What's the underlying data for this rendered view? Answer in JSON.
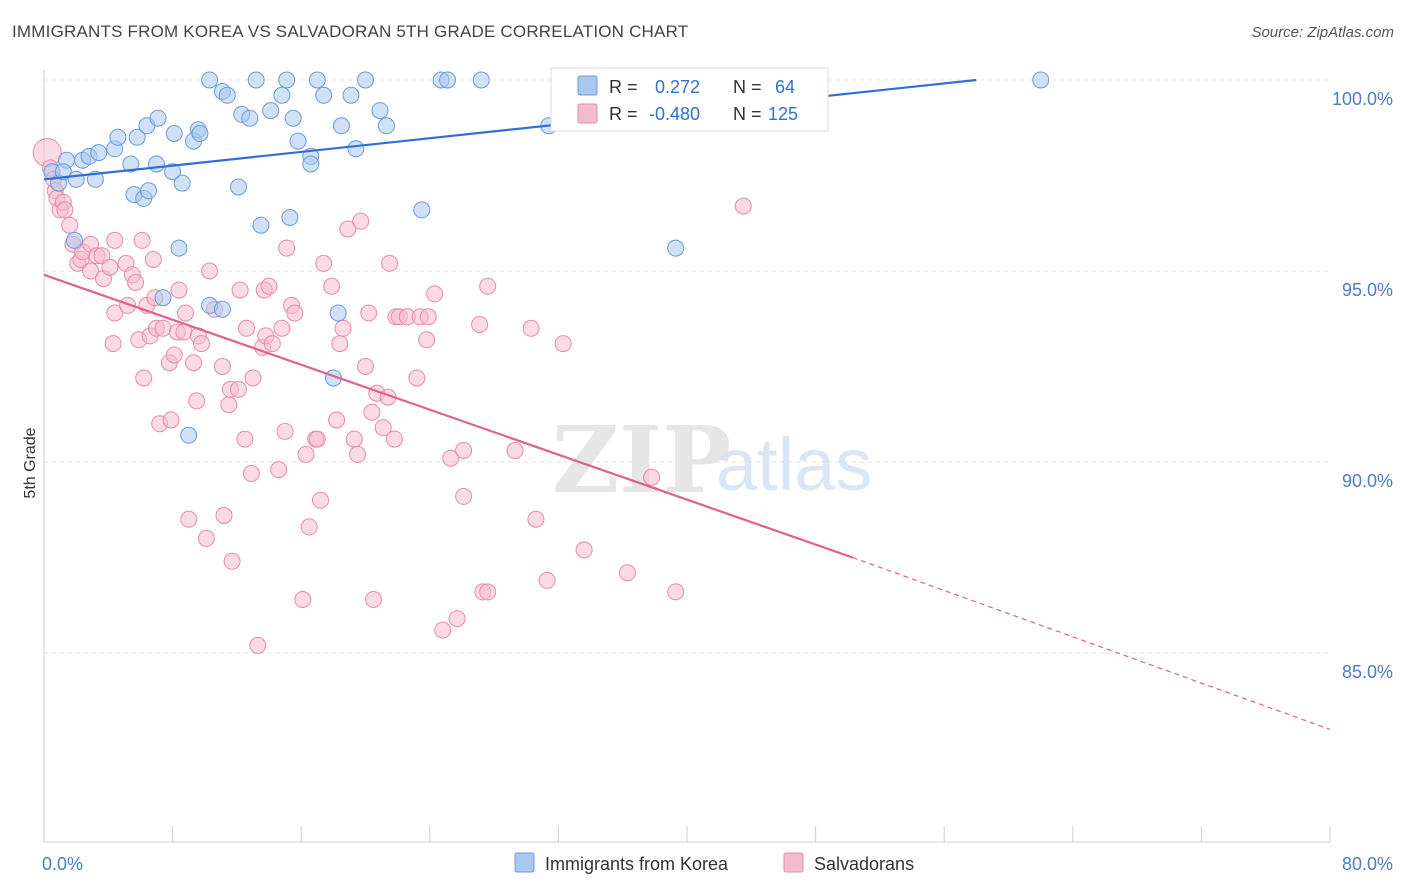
{
  "header": {
    "title": "IMMIGRANTS FROM KOREA VS SALVADORAN 5TH GRADE CORRELATION CHART",
    "source": "Source: ZipAtlas.com"
  },
  "watermark": {
    "zip": "ZIP",
    "atlas": "atlas"
  },
  "colors": {
    "blue": "#a9c8ef",
    "blue_stroke": "#6a9bdc",
    "blue_line": "#2f6fd6",
    "pink": "#f5bcd0",
    "pink_stroke": "#e88aab",
    "pink_line": "#e0608e",
    "axis_label": "#4a7cc9",
    "grid": "#e3e3e3"
  },
  "legend_top": {
    "rows": [
      {
        "r_label": "R =",
        "r_value": "0.272",
        "n_label": "N =",
        "n_value": "64",
        "color": "#a9c8ef"
      },
      {
        "r_label": "R =",
        "r_value": "-0.480",
        "n_label": "N =",
        "n_value": "125",
        "color": "#f5bcd0"
      }
    ]
  },
  "legend_bottom": {
    "items": [
      {
        "label": "Immigrants from Korea",
        "color": "#a9c8ef"
      },
      {
        "label": "Salvadorans",
        "color": "#f5bcd0"
      }
    ]
  },
  "chart_data": {
    "type": "scatter",
    "title": "IMMIGRANTS FROM KOREA VS SALVADORAN 5TH GRADE CORRELATION CHART",
    "ylabel": "5th Grade",
    "xlabel": "",
    "xlim": [
      0,
      80
    ],
    "ylim": [
      80.0,
      100.4
    ],
    "x_tick_labels": {
      "0": "0.0%",
      "80": "80.0%"
    },
    "y_ticks": [
      {
        "value": 100,
        "label": "100.0%"
      },
      {
        "value": 95,
        "label": "95.0%"
      },
      {
        "value": 90,
        "label": "90.0%"
      },
      {
        "value": 85,
        "label": "85.0%"
      }
    ],
    "grid": true,
    "legend_position": "top-center",
    "series": [
      {
        "name": "Immigrants from Korea",
        "r": 0.272,
        "n": 64,
        "trend": {
          "x": [
            0,
            58
          ],
          "y": [
            97.4,
            100.0
          ],
          "dashed_to": null
        },
        "points": [
          [
            0.5,
            97.6
          ],
          [
            0.9,
            97.3
          ],
          [
            1.4,
            97.9
          ],
          [
            1.2,
            97.6
          ],
          [
            2.4,
            97.9
          ],
          [
            2.0,
            97.4
          ],
          [
            3.2,
            97.4
          ],
          [
            2.8,
            98.0
          ],
          [
            3.4,
            98.1
          ],
          [
            4.4,
            98.2
          ],
          [
            4.6,
            98.5
          ],
          [
            5.4,
            97.8
          ],
          [
            5.6,
            97.0
          ],
          [
            5.8,
            98.5
          ],
          [
            6.2,
            96.9
          ],
          [
            6.5,
            97.1
          ],
          [
            6.4,
            98.8
          ],
          [
            7.0,
            97.8
          ],
          [
            7.1,
            99.0
          ],
          [
            8.0,
            97.6
          ],
          [
            8.1,
            98.6
          ],
          [
            8.6,
            97.3
          ],
          [
            9.3,
            98.4
          ],
          [
            9.6,
            98.7
          ],
          [
            9.7,
            98.6
          ],
          [
            10.3,
            100.0
          ],
          [
            11.1,
            99.7
          ],
          [
            11.4,
            99.6
          ],
          [
            12.3,
            99.1
          ],
          [
            12.1,
            97.2
          ],
          [
            12.8,
            99.0
          ],
          [
            13.2,
            100.0
          ],
          [
            13.5,
            96.2
          ],
          [
            14.1,
            99.2
          ],
          [
            15.1,
            100.0
          ],
          [
            15.3,
            96.4
          ],
          [
            15.5,
            99.0
          ],
          [
            15.8,
            98.4
          ],
          [
            16.6,
            98.0
          ],
          [
            17.0,
            100.0
          ],
          [
            16.6,
            97.8
          ],
          [
            18.5,
            98.8
          ],
          [
            19.1,
            99.6
          ],
          [
            19.4,
            98.2
          ],
          [
            20.0,
            100.0
          ],
          [
            20.9,
            99.2
          ],
          [
            24.7,
            100.0
          ],
          [
            25.1,
            100.0
          ],
          [
            27.2,
            100.0
          ],
          [
            31.4,
            98.8
          ],
          [
            39.3,
            95.6
          ],
          [
            62.0,
            100.0
          ],
          [
            1.9,
            95.8
          ],
          [
            7.4,
            94.3
          ],
          [
            8.4,
            95.6
          ],
          [
            10.3,
            94.1
          ],
          [
            18.3,
            93.9
          ],
          [
            18.0,
            92.2
          ],
          [
            9.0,
            90.7
          ],
          [
            11.1,
            94.0
          ],
          [
            21.3,
            98.8
          ],
          [
            14.8,
            99.6
          ],
          [
            23.5,
            96.6
          ],
          [
            17.4,
            99.6
          ]
        ]
      },
      {
        "name": "Salvadorans",
        "r": -0.48,
        "n": 125,
        "trend": {
          "x": [
            0,
            50.3
          ],
          "y": [
            94.9,
            87.5
          ],
          "dashed_to": {
            "x": 80,
            "y": 83.0
          }
        },
        "points": [
          [
            0.2,
            98.1
          ],
          [
            0.4,
            97.7
          ],
          [
            0.6,
            97.4
          ],
          [
            0.7,
            97.1
          ],
          [
            0.8,
            96.9
          ],
          [
            1.0,
            96.6
          ],
          [
            1.2,
            96.8
          ],
          [
            1.3,
            96.6
          ],
          [
            1.6,
            96.2
          ],
          [
            1.8,
            95.7
          ],
          [
            2.1,
            95.2
          ],
          [
            2.3,
            95.3
          ],
          [
            2.4,
            95.5
          ],
          [
            2.9,
            95.0
          ],
          [
            2.9,
            95.7
          ],
          [
            3.3,
            95.4
          ],
          [
            3.6,
            95.4
          ],
          [
            3.7,
            94.8
          ],
          [
            4.1,
            95.1
          ],
          [
            4.3,
            93.1
          ],
          [
            4.4,
            95.8
          ],
          [
            4.4,
            93.9
          ],
          [
            5.1,
            95.2
          ],
          [
            5.2,
            94.1
          ],
          [
            5.5,
            94.9
          ],
          [
            5.7,
            94.7
          ],
          [
            5.9,
            93.2
          ],
          [
            6.1,
            95.8
          ],
          [
            6.2,
            92.2
          ],
          [
            6.4,
            94.1
          ],
          [
            6.6,
            93.3
          ],
          [
            6.9,
            94.3
          ],
          [
            7.0,
            93.5
          ],
          [
            7.2,
            91.0
          ],
          [
            7.4,
            93.5
          ],
          [
            7.8,
            92.6
          ],
          [
            7.9,
            91.1
          ],
          [
            8.1,
            92.8
          ],
          [
            8.3,
            93.4
          ],
          [
            8.4,
            94.5
          ],
          [
            8.7,
            93.4
          ],
          [
            8.8,
            93.9
          ],
          [
            9.0,
            88.5
          ],
          [
            9.3,
            92.6
          ],
          [
            9.5,
            91.6
          ],
          [
            9.6,
            93.3
          ],
          [
            9.8,
            93.1
          ],
          [
            10.1,
            88.0
          ],
          [
            10.3,
            95.0
          ],
          [
            10.6,
            94.0
          ],
          [
            11.1,
            92.5
          ],
          [
            11.2,
            88.6
          ],
          [
            11.5,
            91.5
          ],
          [
            11.6,
            91.9
          ],
          [
            11.7,
            87.4
          ],
          [
            12.1,
            91.9
          ],
          [
            12.2,
            94.5
          ],
          [
            12.5,
            90.6
          ],
          [
            12.6,
            93.5
          ],
          [
            12.9,
            89.7
          ],
          [
            13.0,
            92.2
          ],
          [
            13.3,
            85.2
          ],
          [
            13.6,
            93.0
          ],
          [
            13.7,
            94.5
          ],
          [
            13.8,
            93.3
          ],
          [
            14.0,
            94.6
          ],
          [
            14.2,
            93.1
          ],
          [
            14.6,
            89.8
          ],
          [
            14.8,
            93.5
          ],
          [
            15.0,
            90.8
          ],
          [
            15.1,
            95.6
          ],
          [
            15.4,
            94.1
          ],
          [
            15.6,
            93.9
          ],
          [
            16.1,
            86.4
          ],
          [
            16.3,
            90.2
          ],
          [
            16.5,
            88.3
          ],
          [
            16.9,
            90.6
          ],
          [
            17.0,
            90.6
          ],
          [
            17.2,
            89.0
          ],
          [
            17.4,
            95.2
          ],
          [
            17.9,
            94.6
          ],
          [
            18.2,
            91.1
          ],
          [
            18.4,
            93.1
          ],
          [
            18.6,
            93.5
          ],
          [
            18.9,
            96.1
          ],
          [
            19.3,
            90.6
          ],
          [
            19.5,
            90.2
          ],
          [
            19.7,
            96.3
          ],
          [
            20.0,
            92.5
          ],
          [
            20.2,
            93.9
          ],
          [
            20.4,
            91.3
          ],
          [
            20.7,
            91.8
          ],
          [
            21.1,
            90.9
          ],
          [
            21.4,
            91.7
          ],
          [
            21.5,
            95.2
          ],
          [
            21.8,
            90.6
          ],
          [
            21.9,
            93.8
          ],
          [
            22.1,
            93.8
          ],
          [
            22.6,
            93.8
          ],
          [
            23.2,
            92.2
          ],
          [
            23.4,
            93.8
          ],
          [
            23.8,
            93.2
          ],
          [
            23.9,
            93.8
          ],
          [
            24.3,
            94.4
          ],
          [
            24.8,
            85.6
          ],
          [
            25.3,
            90.1
          ],
          [
            25.7,
            85.9
          ],
          [
            26.1,
            89.1
          ],
          [
            26.1,
            90.3
          ],
          [
            27.1,
            93.6
          ],
          [
            27.3,
            86.6
          ],
          [
            27.6,
            94.6
          ],
          [
            27.6,
            86.6
          ],
          [
            29.3,
            90.3
          ],
          [
            30.3,
            93.5
          ],
          [
            30.6,
            88.5
          ],
          [
            31.3,
            86.9
          ],
          [
            32.3,
            93.1
          ],
          [
            33.6,
            87.7
          ],
          [
            36.3,
            87.1
          ],
          [
            37.8,
            89.6
          ],
          [
            39.3,
            86.6
          ],
          [
            43.5,
            96.7
          ],
          [
            6.8,
            95.3
          ],
          [
            20.5,
            86.4
          ]
        ]
      }
    ]
  }
}
